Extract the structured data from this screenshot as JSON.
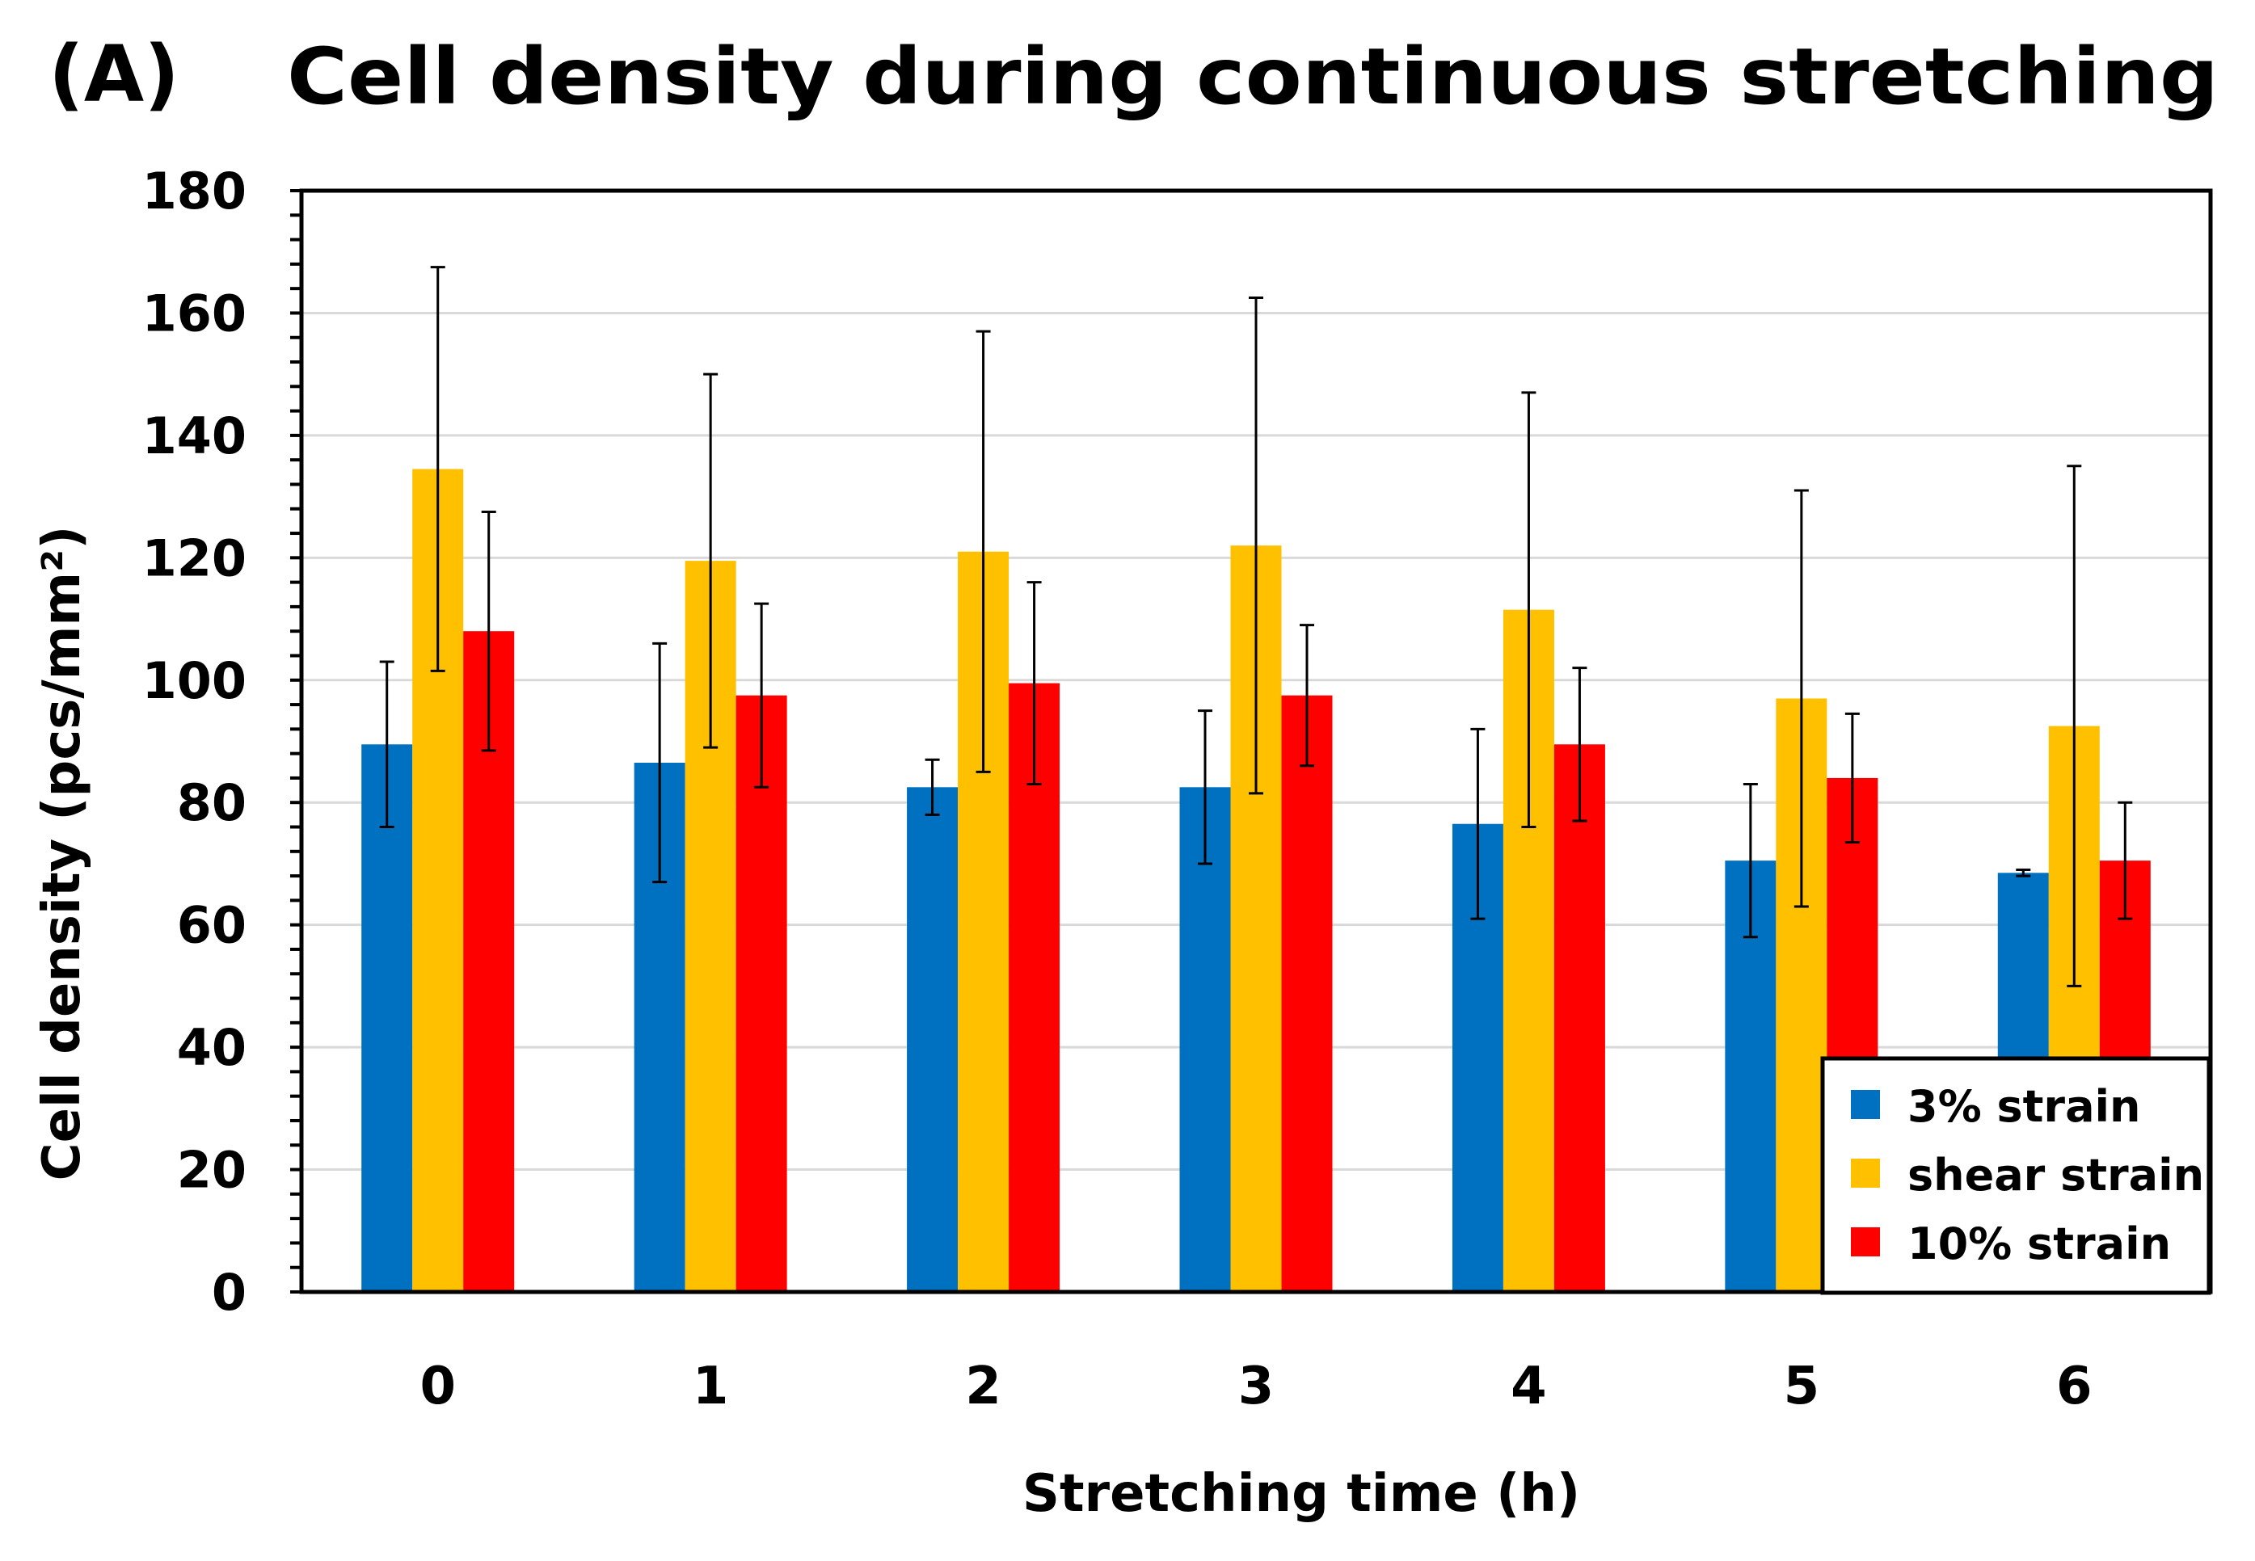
{
  "panel_label": "(A)",
  "chart_data": {
    "type": "bar",
    "title": "Cell density during continuous stretching",
    "xlabel": "Stretching time (h)",
    "ylabel": "Cell density",
    "ylabel_units": "(pcs/mm²)",
    "ylim": [
      0,
      180
    ],
    "yticks": [
      0,
      20,
      40,
      60,
      80,
      100,
      120,
      140,
      160,
      180
    ],
    "grid": true,
    "legend_position": "bottom-right",
    "categories": [
      "0",
      "1",
      "2",
      "3",
      "4",
      "5",
      "6"
    ],
    "series": [
      {
        "name": "3% strain",
        "color": "#0070C0",
        "values": [
          89.5,
          86.5,
          82.5,
          82.5,
          76.5,
          70.5,
          68.5
        ],
        "errors": [
          13.5,
          19.5,
          4.5,
          12.5,
          15.5,
          12.5,
          0.5
        ]
      },
      {
        "name": "shear strain",
        "color": "#FFC000",
        "values": [
          134.5,
          119.5,
          121,
          122,
          111.5,
          97,
          92.5
        ],
        "errors": [
          33,
          30.5,
          36,
          40.5,
          35.5,
          34,
          42.5
        ]
      },
      {
        "name": "10% strain",
        "color": "#FF0000",
        "values": [
          108,
          97.5,
          99.5,
          97.5,
          89.5,
          84,
          70.5
        ],
        "errors": [
          19.5,
          15,
          16.5,
          11.5,
          12.5,
          10.5,
          9.5
        ]
      }
    ]
  }
}
